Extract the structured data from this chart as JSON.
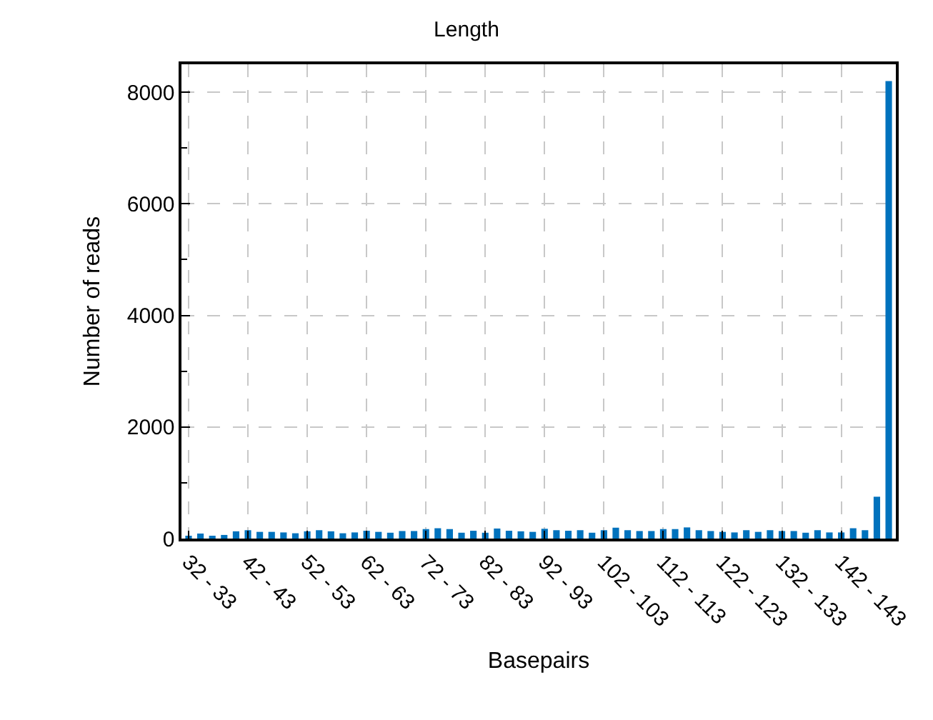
{
  "chart_data": {
    "type": "bar",
    "title": "Length",
    "xlabel": "Basepairs",
    "ylabel": "Number of reads",
    "categories": [
      "32 - 33",
      null,
      null,
      null,
      null,
      "42 - 43",
      null,
      null,
      null,
      null,
      "52 - 53",
      null,
      null,
      null,
      null,
      "62 - 63",
      null,
      null,
      null,
      null,
      "72 - 73",
      null,
      null,
      null,
      null,
      "82 - 83",
      null,
      null,
      null,
      null,
      "92 - 93",
      null,
      null,
      null,
      null,
      "102 - 103",
      null,
      null,
      null,
      null,
      "112 - 113",
      null,
      null,
      null,
      null,
      "122 - 123",
      null,
      null,
      null,
      null,
      "132 - 133",
      null,
      null,
      null,
      null,
      "142 - 143",
      null,
      null,
      null,
      null
    ],
    "values": [
      45,
      90,
      45,
      65,
      130,
      150,
      120,
      120,
      110,
      95,
      130,
      150,
      130,
      95,
      110,
      140,
      120,
      105,
      135,
      135,
      170,
      185,
      170,
      105,
      140,
      105,
      180,
      140,
      130,
      120,
      175,
      150,
      140,
      150,
      105,
      150,
      195,
      150,
      135,
      135,
      170,
      170,
      200,
      150,
      135,
      120,
      110,
      150,
      120,
      150,
      135,
      135,
      105,
      150,
      110,
      110,
      185,
      150,
      750,
      8200
    ],
    "color": "#0072bd",
    "ylim": [
      0,
      8500
    ],
    "yticks": [
      0,
      2000,
      4000,
      6000,
      8000
    ],
    "grid": true
  }
}
